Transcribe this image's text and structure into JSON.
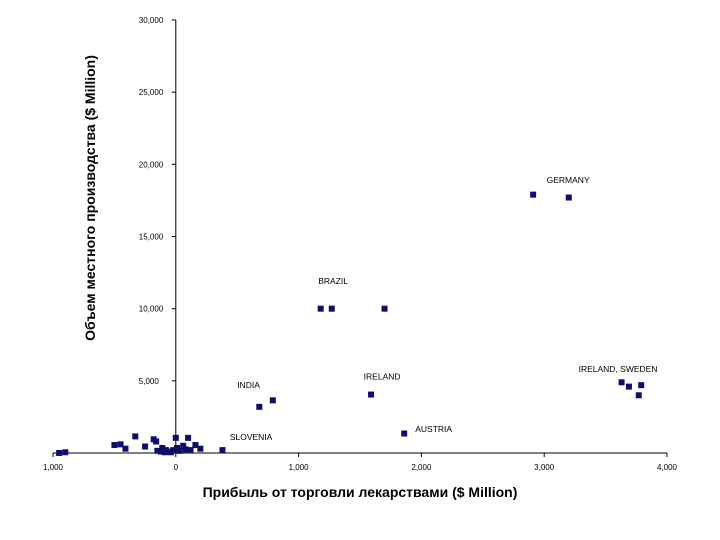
{
  "colors": {
    "marker": "#0d0d6b",
    "axis": "#000000",
    "negative_tick": "#aa0000"
  },
  "chart_data": {
    "type": "scatter",
    "title": "",
    "xlabel": "Прибыль от торговли лекарствами ($ Million)",
    "ylabel": "Объем местного производства ($ Million)",
    "xlim": [
      -1000,
      4000
    ],
    "ylim": [
      0,
      30000
    ],
    "x_ticks": [
      {
        "value": -1000,
        "label": "1,000"
      },
      {
        "value": 0,
        "label": "0"
      },
      {
        "value": 1000,
        "label": "1,000"
      },
      {
        "value": 2000,
        "label": "2,000"
      },
      {
        "value": 3000,
        "label": "3,000"
      },
      {
        "value": 4000,
        "label": "4,000"
      }
    ],
    "y_ticks": [
      {
        "value": 0,
        "label": ""
      },
      {
        "value": 5000,
        "label": "5,000"
      },
      {
        "value": 10000,
        "label": "10,000"
      },
      {
        "value": 15000,
        "label": "15,000"
      },
      {
        "value": 20000,
        "label": "20,000"
      },
      {
        "value": 25000,
        "label": "25,000"
      },
      {
        "value": 30000,
        "label": "30,000"
      }
    ],
    "grid": false,
    "legend": "none",
    "points": [
      {
        "x": -950,
        "y": 0
      },
      {
        "x": -900,
        "y": 50
      },
      {
        "x": -500,
        "y": 550
      },
      {
        "x": -450,
        "y": 600
      },
      {
        "x": -410,
        "y": 300
      },
      {
        "x": -330,
        "y": 1150
      },
      {
        "x": -250,
        "y": 450
      },
      {
        "x": -180,
        "y": 950
      },
      {
        "x": -160,
        "y": 800
      },
      {
        "x": -150,
        "y": 150
      },
      {
        "x": -120,
        "y": 100
      },
      {
        "x": -110,
        "y": 350
      },
      {
        "x": -90,
        "y": 50
      },
      {
        "x": -80,
        "y": 200
      },
      {
        "x": -60,
        "y": 100
      },
      {
        "x": -40,
        "y": 50
      },
      {
        "x": -20,
        "y": 200
      },
      {
        "x": 0,
        "y": 1050
      },
      {
        "x": 10,
        "y": 350
      },
      {
        "x": 30,
        "y": 150
      },
      {
        "x": 60,
        "y": 500
      },
      {
        "x": 80,
        "y": 250
      },
      {
        "x": 100,
        "y": 1050
      },
      {
        "x": 120,
        "y": 200
      },
      {
        "x": 160,
        "y": 550
      },
      {
        "x": 200,
        "y": 300
      },
      {
        "x": 380,
        "y": 200
      },
      {
        "x": 680,
        "y": 3200
      },
      {
        "x": 790,
        "y": 3650
      },
      {
        "x": 1180,
        "y": 10000
      },
      {
        "x": 1270,
        "y": 10000
      },
      {
        "x": 1700,
        "y": 10000
      },
      {
        "x": 1590,
        "y": 4050
      },
      {
        "x": 1860,
        "y": 1350
      },
      {
        "x": 2910,
        "y": 17900
      },
      {
        "x": 3200,
        "y": 17700
      },
      {
        "x": 3630,
        "y": 4900
      },
      {
        "x": 3690,
        "y": 4600
      },
      {
        "x": 3770,
        "y": 4000
      },
      {
        "x": 3790,
        "y": 4700
      }
    ],
    "annotations": [
      {
        "text": "GERMANY",
        "x": 3020,
        "y": 18700
      },
      {
        "text": "BRAZIL",
        "x": 1160,
        "y": 11700
      },
      {
        "text": "INDIA",
        "x": 500,
        "y": 4500
      },
      {
        "text": "IRELAND",
        "x": 1530,
        "y": 5100
      },
      {
        "text": "IRELAND, SWEDEN",
        "x": 3280,
        "y": 5600
      },
      {
        "text": "AUSTRIA",
        "x": 1950,
        "y": 1450
      },
      {
        "text": "SLOVENIA",
        "x": 440,
        "y": 900
      }
    ]
  }
}
